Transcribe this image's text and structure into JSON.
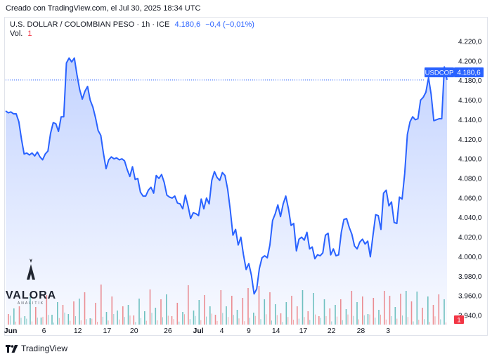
{
  "caption": "Creado con TradingView.com, el Jul 30, 2025 18:34 UTC",
  "legend": {
    "symbol": "U.S. DOLLAR / COLOMBIAN PESO · 1h · ICE",
    "last": "4.180,6",
    "change": "−0,4 (−0,01%)",
    "volume_label": "Vol.",
    "volume_value": "1"
  },
  "watermark": {
    "text": "VALORA",
    "subtext": "ANALITIK"
  },
  "footer": {
    "brand": "TradingView"
  },
  "price_tag": {
    "symbol": "USDCOP",
    "value": "4.180,6"
  },
  "volume_tag": "1",
  "colors": {
    "line": "#2962ff",
    "area": "#2962ff",
    "up_volume": "#26a69a",
    "down_volume": "#ef5350",
    "tag": "#2962ff"
  },
  "chart_data": {
    "type": "area",
    "series": [
      {
        "name": "USDCOP",
        "values": [
          4149,
          4147,
          4148,
          4146,
          4146,
          4138,
          4120,
          4105,
          4106,
          4104,
          4106,
          4103,
          4107,
          4102,
          4099,
          4105,
          4108,
          4126,
          4137,
          4136,
          4128,
          4143,
          4143,
          4198,
          4203,
          4199,
          4203,
          4186,
          4171,
          4161,
          4169,
          4174,
          4160,
          4153,
          4142,
          4129,
          4124,
          4106,
          4090,
          4099,
          4102,
          4100,
          4101,
          4099,
          4100,
          4098,
          4089,
          4082,
          4092,
          4079,
          4080,
          4066,
          4062,
          4062,
          4068,
          4071,
          4065,
          4083,
          4080,
          4084,
          4076,
          4063,
          4061,
          4060,
          4062,
          4055,
          4054,
          4049,
          4063,
          4052,
          4039,
          4045,
          4044,
          4042,
          4059,
          4049,
          4060,
          4054,
          4078,
          4087,
          4081,
          4078,
          4086,
          4083,
          4069,
          4048,
          4022,
          4028,
          4012,
          4020,
          4002,
          3987,
          3993,
          3981,
          3962,
          3967,
          3988,
          3999,
          4001,
          3999,
          4012,
          4037,
          4044,
          4053,
          4041,
          4054,
          4062,
          4049,
          4032,
          4034,
          4006,
          4018,
          4020,
          4017,
          4025,
          4008,
          4010,
          3998,
          4002,
          4001,
          4004,
          4022,
          4024,
          4002,
          4008,
          4001,
          4002,
          4025,
          4038,
          4039,
          4030,
          4023,
          4011,
          4008,
          4015,
          4018,
          4013,
          4016,
          4000,
          4022,
          4043,
          4042,
          4028,
          4065,
          4068,
          4052,
          4056,
          4035,
          4034,
          4061,
          4059,
          4085,
          4125,
          4138,
          4143,
          4140,
          4141,
          4160,
          4163,
          4168,
          4183,
          4166,
          4139,
          4140,
          4141,
          4141,
          4194,
          4180.6
        ]
      }
    ],
    "volume": {
      "spike_heights": [
        0.15,
        0.23,
        0.26,
        0.12,
        0.39,
        0.25,
        0.1,
        0.42,
        0.14,
        0.32,
        0.28,
        0.15,
        0.33,
        0.37,
        0.46,
        0.09,
        0.31,
        0.57,
        0.18,
        0.4,
        0.2,
        0.26,
        0.28,
        0.13,
        0.37,
        0.19,
        0.5,
        0.24,
        0.36,
        0.43,
        0.12,
        0.31,
        0.18,
        0.56,
        0.2,
        0.35,
        0.42,
        0.26,
        0.14,
        0.49,
        0.26,
        0.41,
        0.21,
        0.38,
        0.52,
        0.17,
        0.55,
        0.36,
        0.46,
        0.29,
        0.16,
        0.32,
        0.41,
        0.26,
        0.49,
        0.19,
        0.45,
        0.12,
        0.36,
        0.23,
        0.28,
        0.36,
        0.22,
        0.48,
        0.32,
        0.4,
        0.15,
        0.38,
        0.21,
        0.48,
        0.41,
        0.25,
        0.44,
        0.48,
        0.33,
        0.47,
        0.24,
        0.4,
        0.28,
        0.43,
        0.36
      ],
      "spike_colors": [
        "d",
        "u",
        "d",
        "u",
        "u",
        "d",
        "u",
        "d",
        "u",
        "u",
        "d",
        "u",
        "d",
        "u",
        "d",
        "u",
        "d",
        "d",
        "u",
        "d",
        "u",
        "d",
        "u",
        "d",
        "u",
        "u",
        "d",
        "u",
        "d",
        "u",
        "d",
        "d",
        "u",
        "d",
        "u",
        "u",
        "d",
        "u",
        "d",
        "d",
        "u",
        "d",
        "u",
        "d",
        "d",
        "u",
        "d",
        "u",
        "d",
        "u",
        "d",
        "u",
        "d",
        "d",
        "u",
        "d",
        "u",
        "d",
        "u",
        "d",
        "u",
        "d",
        "u",
        "d",
        "u",
        "d",
        "u",
        "d",
        "u",
        "d",
        "d",
        "u",
        "d",
        "u",
        "d",
        "u",
        "d",
        "u",
        "d",
        "d",
        "u"
      ]
    },
    "y_axis": {
      "min": 3930,
      "max": 4230,
      "ticks": [
        4220,
        4200,
        4180,
        4160,
        4140,
        4120,
        4100,
        4080,
        4060,
        4040,
        4020,
        4000,
        3980,
        3960,
        3940
      ],
      "tick_labels": [
        "4.220,0",
        "4.200,0",
        "4.180,0",
        "4.160,0",
        "4.140,0",
        "4.120,0",
        "4.100,0",
        "4.080,0",
        "4.060,0",
        "4.040,0",
        "4.020,0",
        "4.000,0",
        "3.980,0",
        "3.960,0",
        "3.940,0"
      ]
    },
    "x_axis": {
      "tick_labels": [
        "Jun",
        "6",
        "12",
        "17",
        "20",
        "26",
        "Jul",
        "4",
        "9",
        "14",
        "17",
        "22",
        "28",
        "3"
      ],
      "tick_positions": [
        0.3,
        14.5,
        27.3,
        38.4,
        48.6,
        61.4,
        72.9,
        81.8,
        92.0,
        102.3,
        112.6,
        123.3,
        134.4,
        145.5
      ],
      "bold": [
        "Jun",
        "Jul"
      ]
    },
    "last_value": 4180.6,
    "grid": false,
    "legend_placement": "top-left"
  }
}
